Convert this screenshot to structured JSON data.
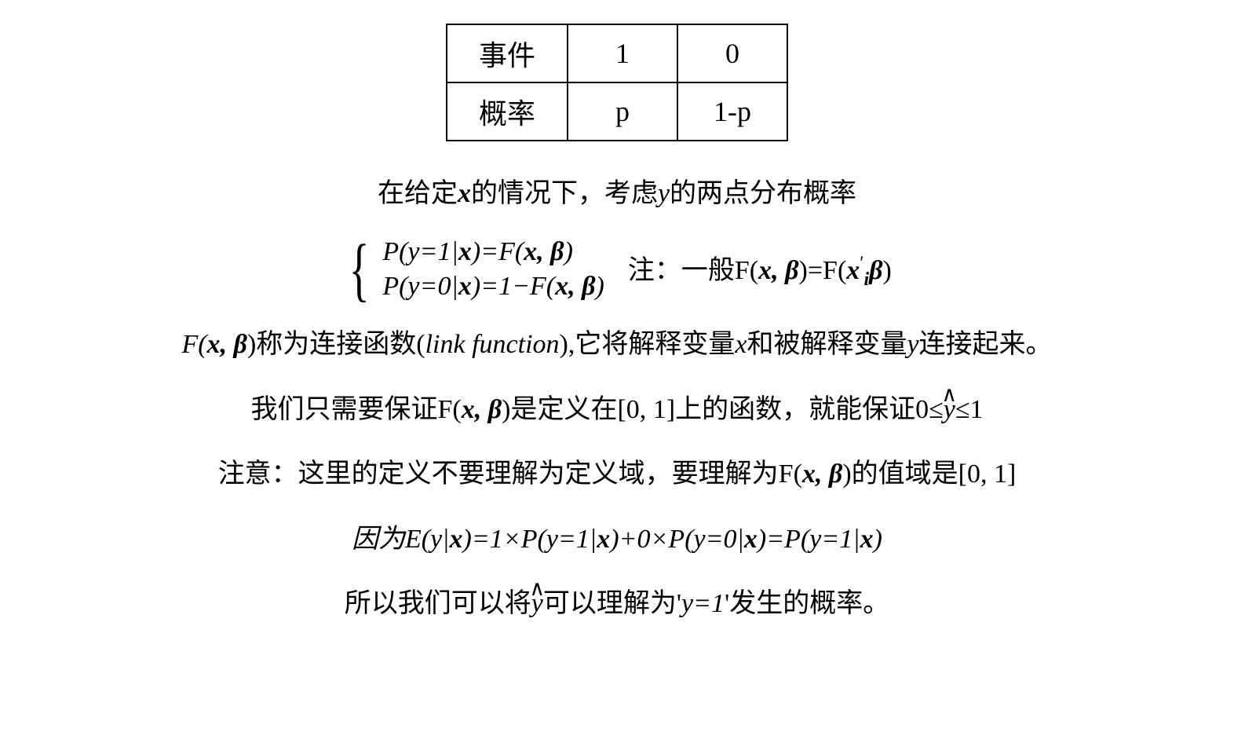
{
  "table": {
    "row1": {
      "label": "事件",
      "col1": "1",
      "col2": "0"
    },
    "row2": {
      "label": "概率",
      "col1": "p",
      "col2": "1-p"
    }
  },
  "lines": {
    "intro": {
      "pre": "在给定",
      "x": "x",
      "mid": "的情况下，考虑",
      "y": "y",
      "post": "的两点分布概率"
    },
    "formula1": {
      "eq1_pre": "P(y=1|",
      "eq1_x": "x",
      "eq1_mid": ")=F(",
      "eq1_xb": "x, β",
      "eq1_post": ")",
      "eq2_pre": "P(y=0|",
      "eq2_x": "x",
      "eq2_mid": ")=1−F(",
      "eq2_xb": "x, β",
      "eq2_post": ")",
      "note_pre": "注：一般F(",
      "note_xb": "x, β",
      "note_mid": ")=F(",
      "note_xi": "x",
      "note_prime": "′",
      "note_sub": "i",
      "note_beta": "β",
      "note_post": ")"
    },
    "line3": {
      "pre": "F(",
      "xb": "x, β",
      "mid1": ")称为连接函数(",
      "link": "link function",
      "mid2": "),它将解释变量",
      "x": "x",
      "mid3": "和被解释变量",
      "y": "y",
      "post": "连接起来。"
    },
    "line4": {
      "pre": "我们只需要保证F(",
      "xb": "x, β",
      "mid": ")是定义在[0, 1]上的函数，就能保证0≤",
      "yhat": "y",
      "hat": "∧",
      "post": "≤1"
    },
    "line5": {
      "pre": "注意：这里的定义不要理解为定义域，要理解为F(",
      "xb": "x, β",
      "post": ")的值域是[0, 1]"
    },
    "line6": {
      "pre": "因为E(y|",
      "x1": "x",
      "mid1": ")=1×P(y=1|",
      "x2": "x",
      "mid2": ")+0×P(y=0|",
      "x3": "x",
      "mid3": ")=P(y=1|",
      "x4": "x",
      "post": ")"
    },
    "line7": {
      "pre": "所以我们可以将",
      "yhat": "y",
      "hat": "∧",
      "mid": "可以理解为'",
      "eq": "y=1",
      "post": "'发生的概率。"
    }
  },
  "styling": {
    "font_size_body": 34,
    "font_size_table": 36,
    "text_color": "#000000",
    "background_color": "#ffffff",
    "border_color": "#000000",
    "border_width": 2,
    "cell_padding_v": 10,
    "cell_padding_h": 40,
    "line_spacing": 28
  }
}
